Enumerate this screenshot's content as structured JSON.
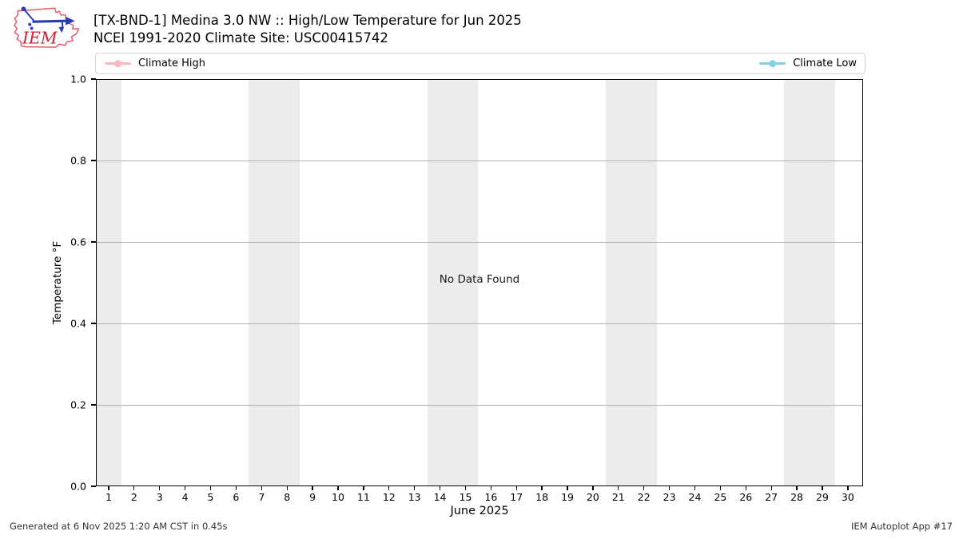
{
  "page": {
    "background": "#ffffff"
  },
  "logo": {
    "text": "IEM",
    "outline_color": "#e6606c",
    "glyph_color": "#2a3db4",
    "text_color": "#cc2233"
  },
  "header": {
    "title": "[TX-BND-1] Medina 3.0 NW :: High/Low Temperature for Jun 2025",
    "subtitle": "NCEI 1991-2020 Climate Site: USC00415742"
  },
  "legend": {
    "items": [
      {
        "label": "Climate High",
        "color": "#ffb6c1"
      },
      {
        "label": "Climate Low",
        "color": "#87ceeb"
      }
    ]
  },
  "footer": {
    "generated": "Generated at 6 Nov 2025 1:20 AM CST in 0.45s",
    "app": "IEM Autoplot App #17"
  },
  "chart_data": {
    "type": "line",
    "title": "[TX-BND-1] Medina 3.0 NW :: High/Low Temperature for Jun 2025",
    "subtitle": "NCEI 1991-2020 Climate Site: USC00415742",
    "xlabel": "June 2025",
    "ylabel": "Temperature °F",
    "annotation": "No Data Found",
    "xlim": [
      0.5,
      30.6
    ],
    "ylim": [
      0.0,
      1.0
    ],
    "xticks": [
      1,
      2,
      3,
      4,
      5,
      6,
      7,
      8,
      9,
      10,
      11,
      12,
      13,
      14,
      15,
      16,
      17,
      18,
      19,
      20,
      21,
      22,
      23,
      24,
      25,
      26,
      27,
      28,
      29,
      30
    ],
    "yticks": [
      "0.0",
      "0.2",
      "0.4",
      "0.6",
      "0.8",
      "1.0"
    ],
    "grid": true,
    "grid_color": "#b0b0b0",
    "weekend_band_color": "#ececec",
    "weekend_bands": [
      [
        0.5,
        1.5
      ],
      [
        6.5,
        8.5
      ],
      [
        13.5,
        15.5
      ],
      [
        20.5,
        22.5
      ],
      [
        27.5,
        29.5
      ]
    ],
    "legend_position": "top-expanded",
    "series": [
      {
        "name": "Climate High",
        "color": "#ffb6c1",
        "x": [],
        "values": []
      },
      {
        "name": "Climate Low",
        "color": "#87ceeb",
        "x": [],
        "values": []
      }
    ]
  }
}
